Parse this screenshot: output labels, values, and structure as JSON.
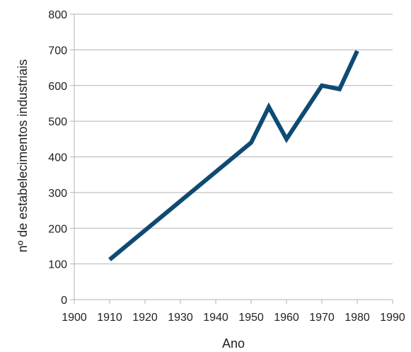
{
  "chart_data": {
    "type": "line",
    "title": "",
    "xlabel": "Ano",
    "ylabel": "nº de estabelecimentos industriais",
    "xlim": [
      1900,
      1990
    ],
    "ylim": [
      0,
      800
    ],
    "x_ticks": [
      1900,
      1910,
      1920,
      1930,
      1940,
      1950,
      1960,
      1970,
      1980,
      1990
    ],
    "y_ticks": [
      0,
      100,
      200,
      300,
      400,
      500,
      600,
      700,
      800
    ],
    "grid": "horizontal",
    "series": [
      {
        "color": "#0e4a73",
        "points": [
          {
            "x": 1910,
            "y": 112
          },
          {
            "x": 1950,
            "y": 440
          },
          {
            "x": 1955,
            "y": 540
          },
          {
            "x": 1960,
            "y": 450
          },
          {
            "x": 1970,
            "y": 600
          },
          {
            "x": 1975,
            "y": 590
          },
          {
            "x": 1980,
            "y": 697
          }
        ]
      }
    ]
  }
}
